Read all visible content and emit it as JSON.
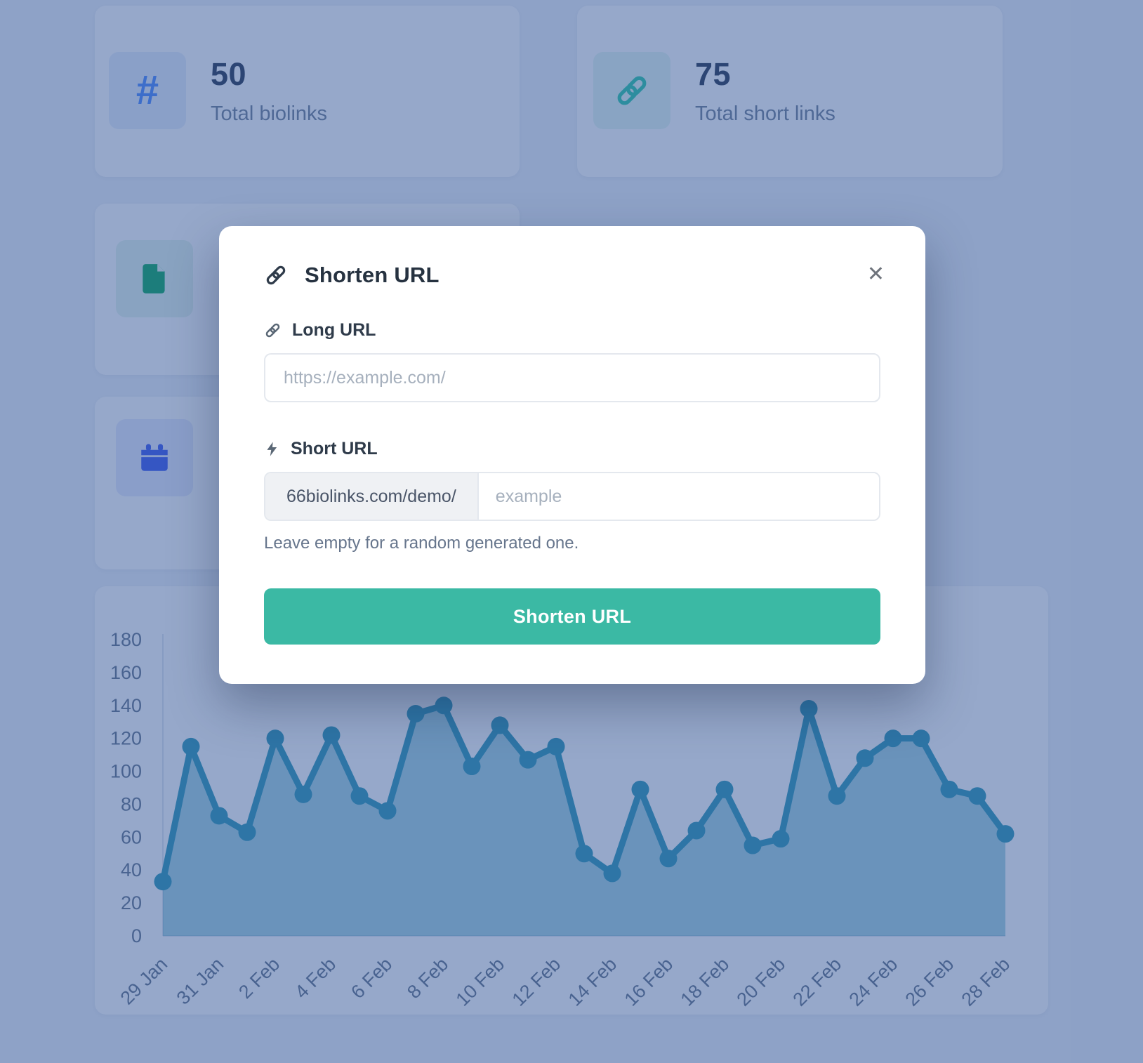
{
  "stats": {
    "cards": [
      {
        "id": "biolinks",
        "icon": "hash-icon",
        "value": "50",
        "label": "Total biolinks",
        "icon_color": "#4c8aff",
        "icon_bg": "#e7eefb"
      },
      {
        "id": "short-links",
        "icon": "link-icon",
        "value": "75",
        "label": "Total short links",
        "icon_color": "#2dc9a8",
        "icon_bg": "#e4f7f1"
      },
      {
        "id": "pages",
        "icon": "file-icon",
        "icon_color": "#0aa860",
        "icon_bg": "#e4f5ec"
      },
      {
        "id": "events",
        "icon": "calendar-icon",
        "icon_color": "#3d5af1",
        "icon_bg": "#e7eafd"
      }
    ]
  },
  "modal": {
    "title": "Shorten URL",
    "title_icon": "link-icon",
    "close_icon": "close-icon",
    "close_glyph": "✕",
    "accent_color": "#3bb9a4",
    "long_url": {
      "label": "Long URL",
      "icon": "link-icon",
      "placeholder": "https://example.com/",
      "value": ""
    },
    "short_url": {
      "label": "Short URL",
      "icon": "bolt-icon",
      "prefix": "66biolinks.com/demo/",
      "placeholder": "example",
      "value": "",
      "helper": "Leave empty for a random generated one."
    },
    "submit_label": "Shorten URL"
  },
  "chart_data": {
    "type": "line",
    "title": "",
    "xlabel": "",
    "ylabel": "",
    "x": [
      "29 Jan",
      "30 Jan",
      "31 Jan",
      "1 Feb",
      "2 Feb",
      "3 Feb",
      "4 Feb",
      "5 Feb",
      "6 Feb",
      "7 Feb",
      "8 Feb",
      "9 Feb",
      "10 Feb",
      "11 Feb",
      "12 Feb",
      "13 Feb",
      "14 Feb",
      "15 Feb",
      "16 Feb",
      "17 Feb",
      "18 Feb",
      "19 Feb",
      "20 Feb",
      "21 Feb",
      "22 Feb",
      "23 Feb",
      "24 Feb",
      "25 Feb",
      "26 Feb",
      "27 Feb",
      "28 Feb"
    ],
    "values": [
      33,
      115,
      73,
      63,
      120,
      86,
      122,
      85,
      76,
      135,
      140,
      103,
      128,
      107,
      115,
      50,
      38,
      89,
      47,
      64,
      89,
      55,
      59,
      138,
      85,
      108,
      120,
      120,
      89,
      85,
      62
    ],
    "x_tick_labels": [
      "29 Jan",
      "31 Jan",
      "2 Feb",
      "4 Feb",
      "6 Feb",
      "8 Feb",
      "10 Feb",
      "12 Feb",
      "14 Feb",
      "16 Feb",
      "18 Feb",
      "20 Feb",
      "22 Feb",
      "24 Feb",
      "26 Feb",
      "28 Feb"
    ],
    "y_ticks": [
      0,
      20,
      40,
      60,
      80,
      100,
      120,
      140,
      160,
      180
    ],
    "ylim": [
      0,
      180
    ],
    "grid": false,
    "legend": false,
    "line_color": "#2e98b6",
    "dot_color": "#2e98b6",
    "fill_opacity": 0.42,
    "axis_color": "#dfe5ee",
    "tick_color": "#64748b",
    "note": "peaks near 8-9 Feb, 10 Feb and 21 Feb are occluded by the modal dialog"
  }
}
